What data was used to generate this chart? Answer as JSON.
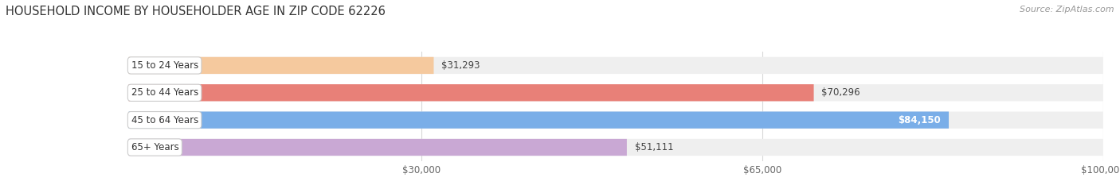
{
  "title": "HOUSEHOLD INCOME BY HOUSEHOLDER AGE IN ZIP CODE 62226",
  "source": "Source: ZipAtlas.com",
  "categories": [
    "15 to 24 Years",
    "25 to 44 Years",
    "45 to 64 Years",
    "65+ Years"
  ],
  "values": [
    31293,
    70296,
    84150,
    51111
  ],
  "bar_colors": [
    "#f5c99e",
    "#e88078",
    "#7aaee8",
    "#c9a8d4"
  ],
  "value_labels": [
    "$31,293",
    "$70,296",
    "$84,150",
    "$51,111"
  ],
  "value_label_inside": [
    false,
    false,
    true,
    false
  ],
  "bar_bg_color": "#efefef",
  "xmax": 100000,
  "xticks": [
    30000,
    65000,
    100000
  ],
  "xtick_labels": [
    "$30,000",
    "$65,000",
    "$100,000"
  ],
  "title_fontsize": 10.5,
  "source_fontsize": 8,
  "bar_height": 0.62,
  "bg_color": "#ffffff",
  "grid_color": "#d8d8d8",
  "bar_gap": 0.18
}
